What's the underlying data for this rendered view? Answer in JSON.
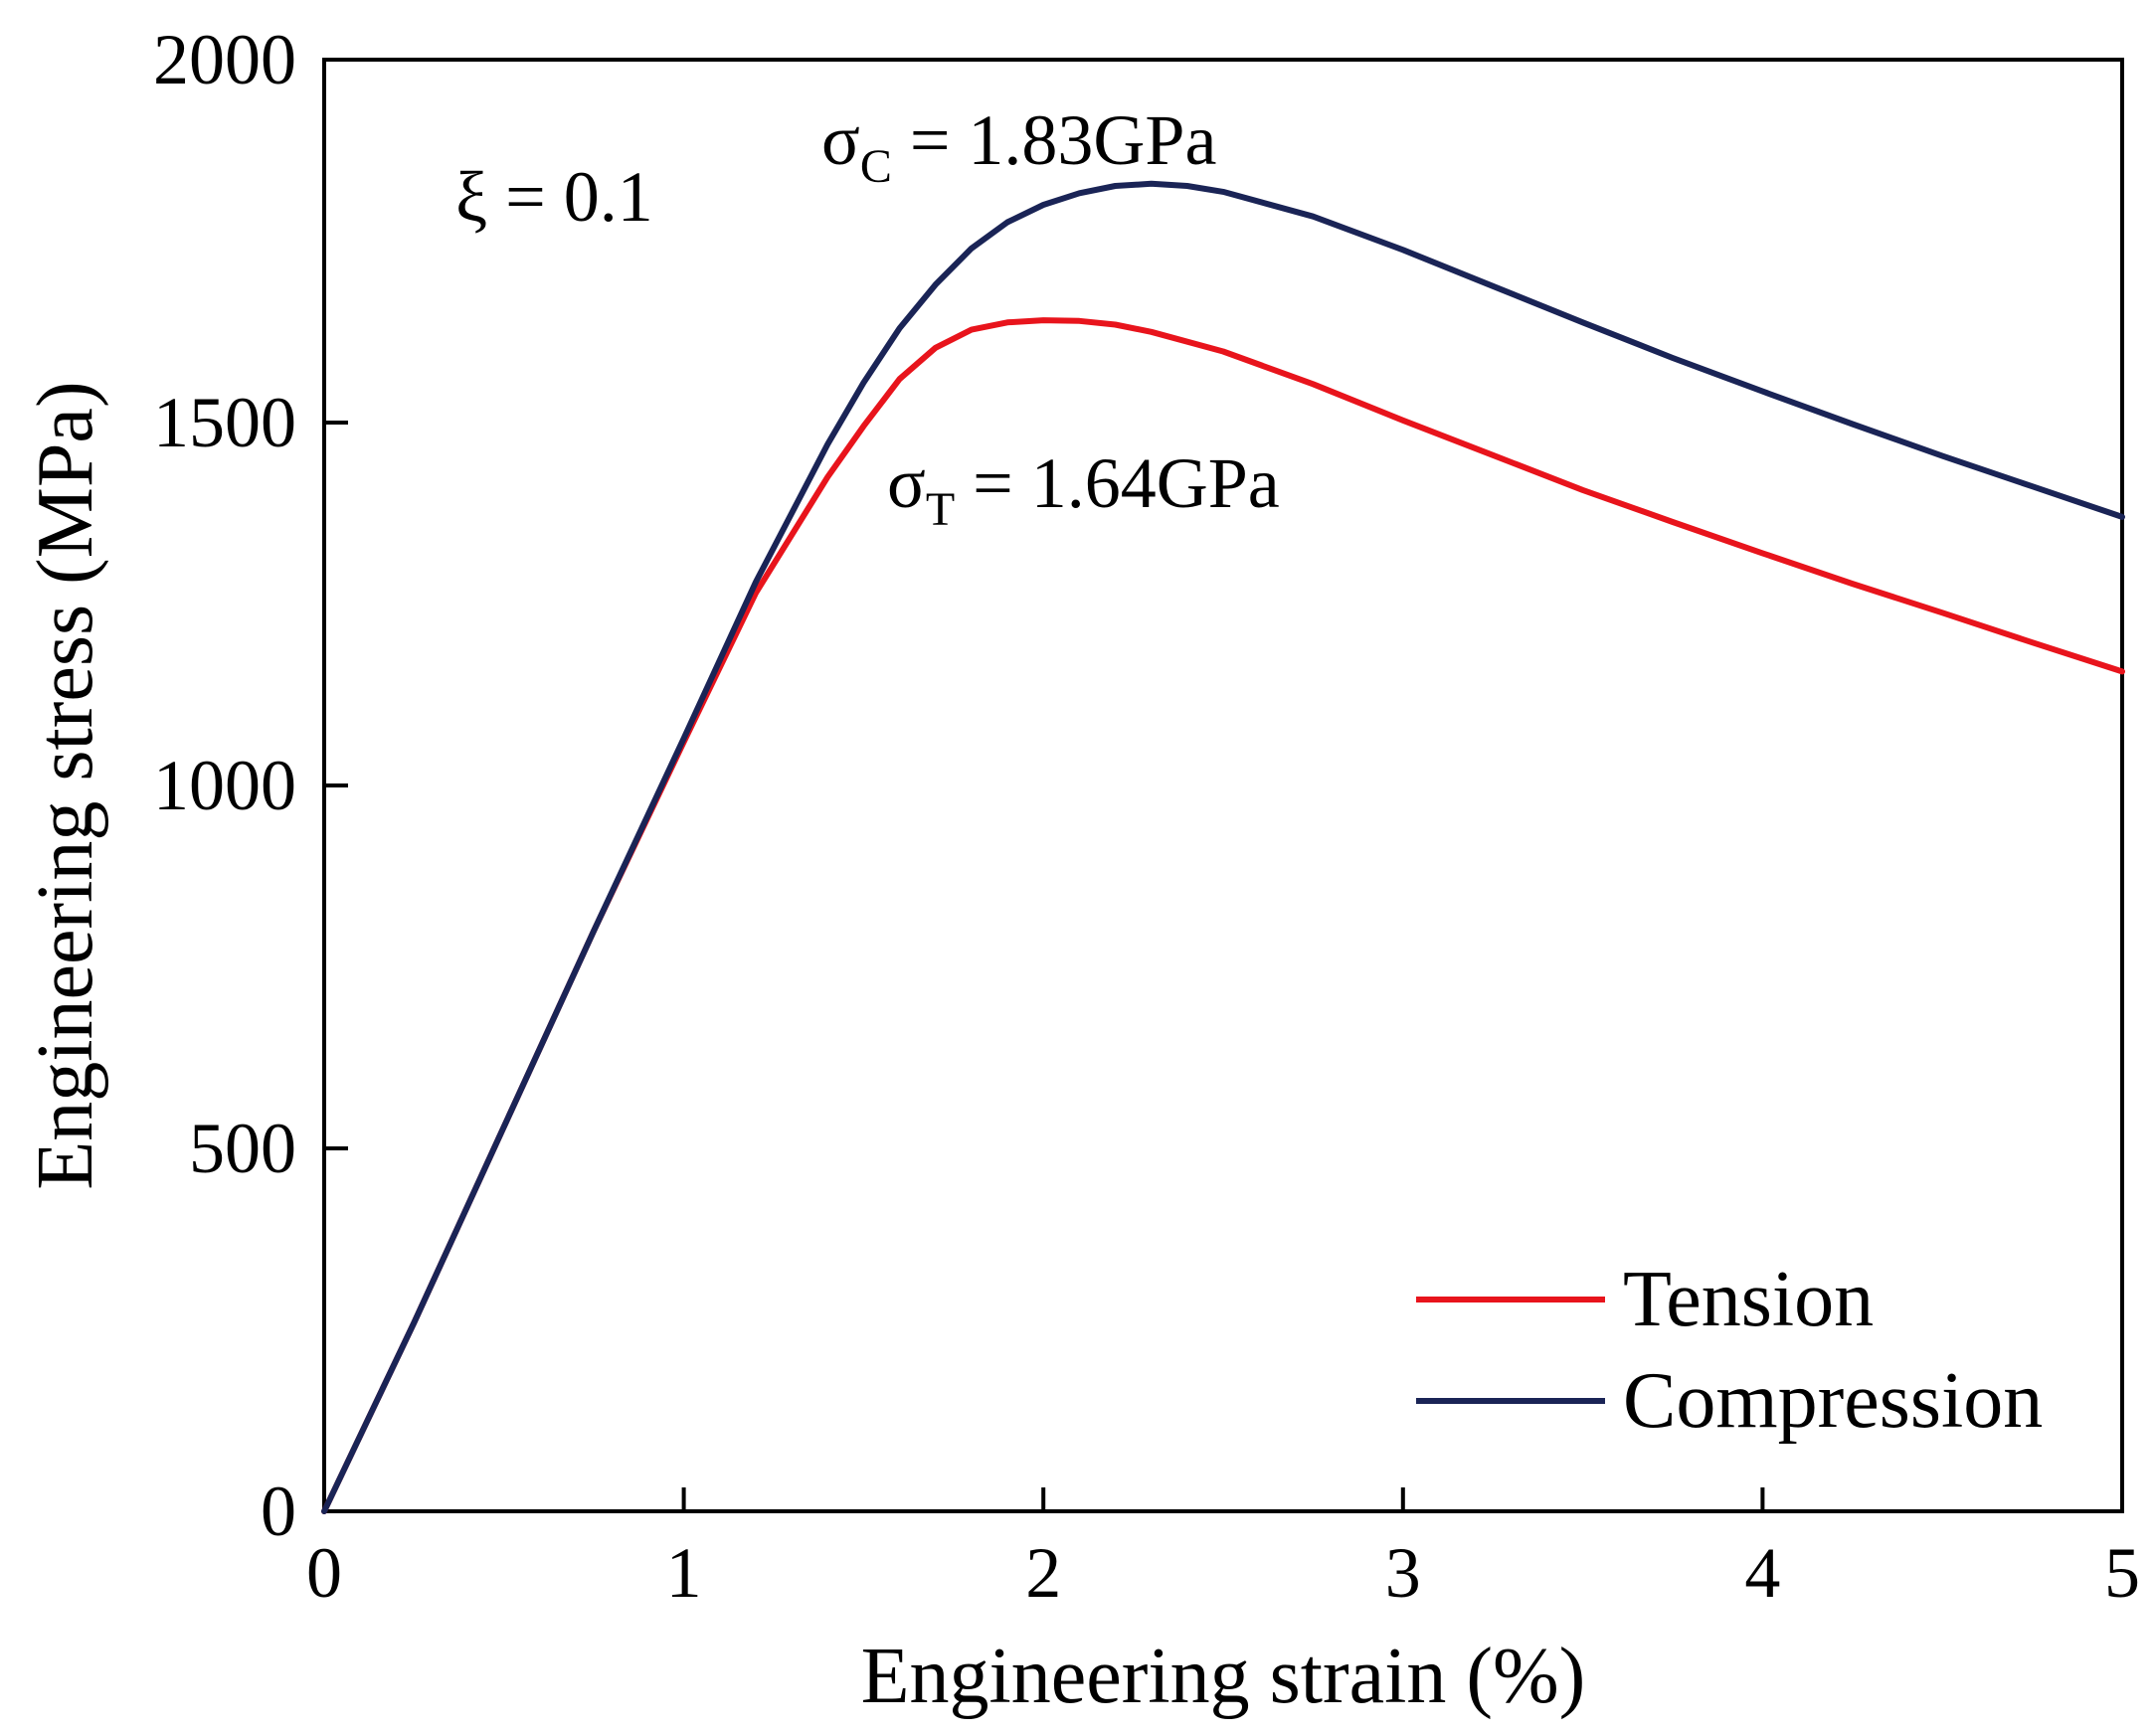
{
  "chart_data": {
    "type": "line",
    "title": "",
    "xlabel": "Engineering strain (%)",
    "ylabel": "Engineering stress (MPa)",
    "xlim": [
      0,
      5
    ],
    "ylim": [
      0,
      2000
    ],
    "xticks": [
      0,
      1,
      2,
      3,
      4,
      5
    ],
    "yticks": [
      0,
      500,
      1000,
      1500,
      2000
    ],
    "grid": false,
    "legend_position": "bottom-right",
    "annotations": {
      "xi": "ξ = 0.1",
      "sigma_c": {
        "symbol": "σ",
        "subscript": "C",
        "text": " = 1.83GPa"
      },
      "sigma_t": {
        "symbol": "σ",
        "subscript": "T",
        "text": " = 1.64GPa"
      }
    },
    "series": [
      {
        "name": "Tension",
        "color": "#e8141c",
        "x": [
          0,
          0.25,
          0.5,
          0.75,
          1.0,
          1.2,
          1.4,
          1.5,
          1.6,
          1.7,
          1.8,
          1.9,
          2.0,
          2.1,
          2.2,
          2.3,
          2.5,
          2.75,
          3.0,
          3.25,
          3.5,
          3.75,
          4.0,
          4.25,
          4.5,
          4.75,
          5.0
        ],
        "values": [
          0,
          260,
          530,
          800,
          1060,
          1265,
          1425,
          1495,
          1560,
          1603,
          1628,
          1638,
          1641,
          1640,
          1635,
          1625,
          1598,
          1553,
          1503,
          1455,
          1407,
          1363,
          1320,
          1278,
          1238,
          1197,
          1157
        ]
      },
      {
        "name": "Compression",
        "color": "#1a2456",
        "x": [
          0,
          0.25,
          0.5,
          0.75,
          1.0,
          1.2,
          1.4,
          1.5,
          1.6,
          1.7,
          1.8,
          1.9,
          2.0,
          2.1,
          2.2,
          2.3,
          2.4,
          2.5,
          2.75,
          3.0,
          3.25,
          3.5,
          3.75,
          4.0,
          4.25,
          4.5,
          4.75,
          5.0
        ],
        "values": [
          0,
          260,
          530,
          800,
          1065,
          1280,
          1470,
          1555,
          1630,
          1690,
          1740,
          1776,
          1800,
          1816,
          1826,
          1829,
          1826,
          1818,
          1784,
          1738,
          1688,
          1638,
          1589,
          1543,
          1498,
          1454,
          1412,
          1370
        ]
      }
    ]
  }
}
